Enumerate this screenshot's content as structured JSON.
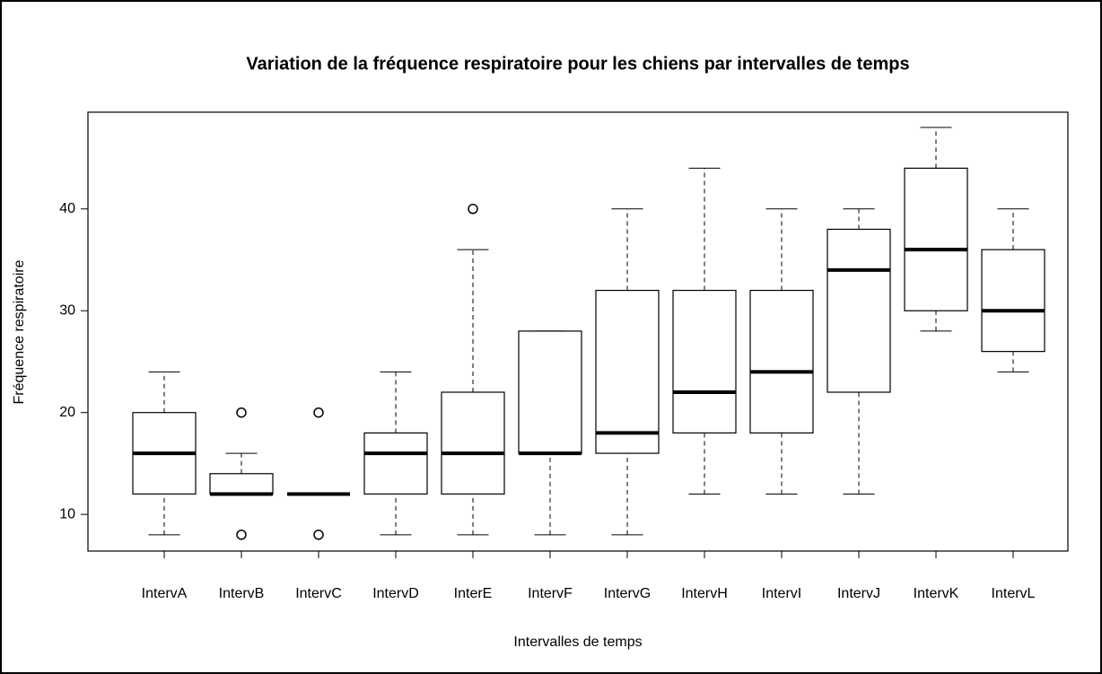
{
  "chart_data": {
    "type": "boxplot",
    "title": "Variation de la fréquence respiratoire pour les chiens par intervalles de temps",
    "x_label": "Intervalles de temps",
    "y_label": "Fréquence respiratoire",
    "categories": [
      "IntervA",
      "IntervB",
      "IntervC",
      "IntervD",
      "InterE",
      "IntervF",
      "IntervG",
      "IntervH",
      "IntervI",
      "IntervJ",
      "IntervK",
      "IntervL"
    ],
    "min": [
      8,
      12,
      12,
      8,
      8,
      8,
      8,
      12,
      12,
      12,
      28,
      24
    ],
    "q1": [
      12,
      12,
      12,
      12,
      12,
      16,
      16,
      18,
      18,
      22,
      30,
      26
    ],
    "median": [
      16,
      12,
      12,
      16,
      16,
      16,
      18,
      22,
      24,
      34,
      36,
      30
    ],
    "q3": [
      20,
      14,
      12,
      18,
      22,
      28,
      32,
      32,
      32,
      38,
      44,
      36
    ],
    "max": [
      24,
      16,
      12,
      24,
      36,
      28,
      40,
      44,
      40,
      40,
      48,
      40
    ],
    "outliers": [
      [],
      [
        20,
        8
      ],
      [
        20,
        8
      ],
      [],
      [
        40
      ],
      [],
      [],
      [],
      [],
      [],
      [],
      []
    ],
    "color": "#ffffff",
    "ylim": [
      6.4,
      49.5
    ],
    "yticks": [
      10,
      20,
      30,
      40
    ]
  }
}
